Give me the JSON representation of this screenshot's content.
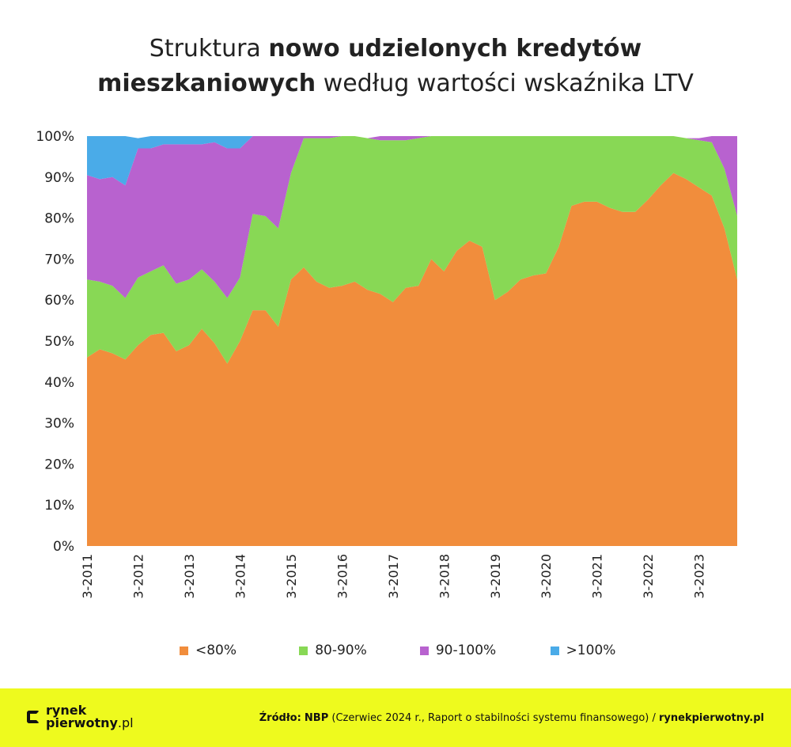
{
  "title": {
    "part1_regular": "Struktura ",
    "part2_bold": "nowo udzielonych kredytów",
    "part3_bold": "mieszkaniowych",
    "part4_regular": " według wartości wskaźnika LTV"
  },
  "footer": {
    "logo_line1": "rynek",
    "logo_line2": "pierwotny",
    "logo_suffix": ".pl",
    "source_label": "Źródło:",
    "source_bold": "NBP",
    "source_text": " (Czerwiec 2024 r., Raport o stabilności systemu finansowego) / ",
    "source_site": "rynekpierwotny.pl"
  },
  "colors": {
    "lt80": "#f18d3c",
    "80_90": "#88d855",
    "90_100": "#b862cf",
    "gt100": "#4aabe8",
    "footer_bg": "#eefa1e"
  },
  "chart_data": {
    "type": "area",
    "stacked": true,
    "ylim": [
      0,
      100
    ],
    "y_ticks": [
      "0%",
      "10%",
      "20%",
      "30%",
      "40%",
      "50%",
      "60%",
      "70%",
      "80%",
      "90%",
      "100%"
    ],
    "x_tick_labels": [
      "3-2011",
      "3-2012",
      "3-2013",
      "3-2014",
      "3-2015",
      "3-2016",
      "3-2017",
      "3-2018",
      "3-2019",
      "3-2020",
      "3-2021",
      "3-2022",
      "3-2023"
    ],
    "x_tick_indices": [
      0,
      4,
      8,
      12,
      16,
      20,
      24,
      28,
      32,
      36,
      40,
      44,
      48
    ],
    "legend_position": "bottom",
    "series": [
      {
        "name": "<80%",
        "values": [
          46,
          48,
          47,
          45.5,
          49,
          51.5,
          52,
          47.5,
          49,
          53,
          49.5,
          44.5,
          50,
          57.5,
          57.5,
          53.5,
          65,
          68,
          64.5,
          63,
          63.5,
          64.5,
          62.5,
          61.5,
          59.5,
          63,
          63.5,
          70,
          67,
          72,
          74.5,
          73,
          60,
          62,
          65,
          66,
          66.5,
          73,
          83,
          84,
          84,
          82.5,
          81.5,
          81.5,
          84.5,
          88,
          91,
          89.5,
          87.5,
          85.5,
          77.5,
          65
        ]
      },
      {
        "name": "80-90%",
        "values": [
          19,
          16.5,
          16.5,
          15,
          16.5,
          15.5,
          16.5,
          16.5,
          16,
          14.5,
          15,
          16,
          15.5,
          23.5,
          23,
          24,
          26,
          31.5,
          35,
          36.5,
          36.5,
          35.5,
          37,
          37.5,
          39.5,
          36,
          36,
          30,
          33,
          28,
          25.5,
          27,
          40,
          38,
          35,
          34,
          33.5,
          27,
          17,
          16,
          16,
          17.5,
          18.5,
          18.5,
          15.5,
          12,
          9,
          10,
          11.5,
          13,
          14.5,
          15.5
        ]
      },
      {
        "name": "90-100%",
        "values": [
          25.5,
          25,
          26.5,
          27.5,
          31.5,
          30,
          29.5,
          34,
          33,
          30.5,
          34,
          36.5,
          31.5,
          19,
          19.5,
          22.5,
          9,
          0.5,
          0.5,
          0.5,
          0,
          0,
          0,
          1,
          1,
          1,
          0.5,
          0,
          0,
          0,
          0,
          0,
          0,
          0,
          0,
          0,
          0,
          0,
          0,
          0,
          0,
          0,
          0,
          0,
          0,
          0,
          0,
          0,
          0.5,
          1.5,
          8,
          19.5
        ]
      },
      {
        "name": ">100%",
        "values": [
          9.5,
          10.5,
          10,
          12,
          2.5,
          3,
          2,
          2,
          2,
          2,
          1.5,
          3,
          3,
          0,
          0,
          0,
          0,
          0,
          0,
          0,
          0,
          0,
          0,
          0,
          0,
          0,
          0,
          0,
          0,
          0,
          0,
          0,
          0,
          0,
          0,
          0,
          0,
          0,
          0,
          0,
          0,
          0,
          0,
          0,
          0,
          0,
          0,
          0,
          0,
          0,
          0,
          0
        ]
      }
    ]
  }
}
